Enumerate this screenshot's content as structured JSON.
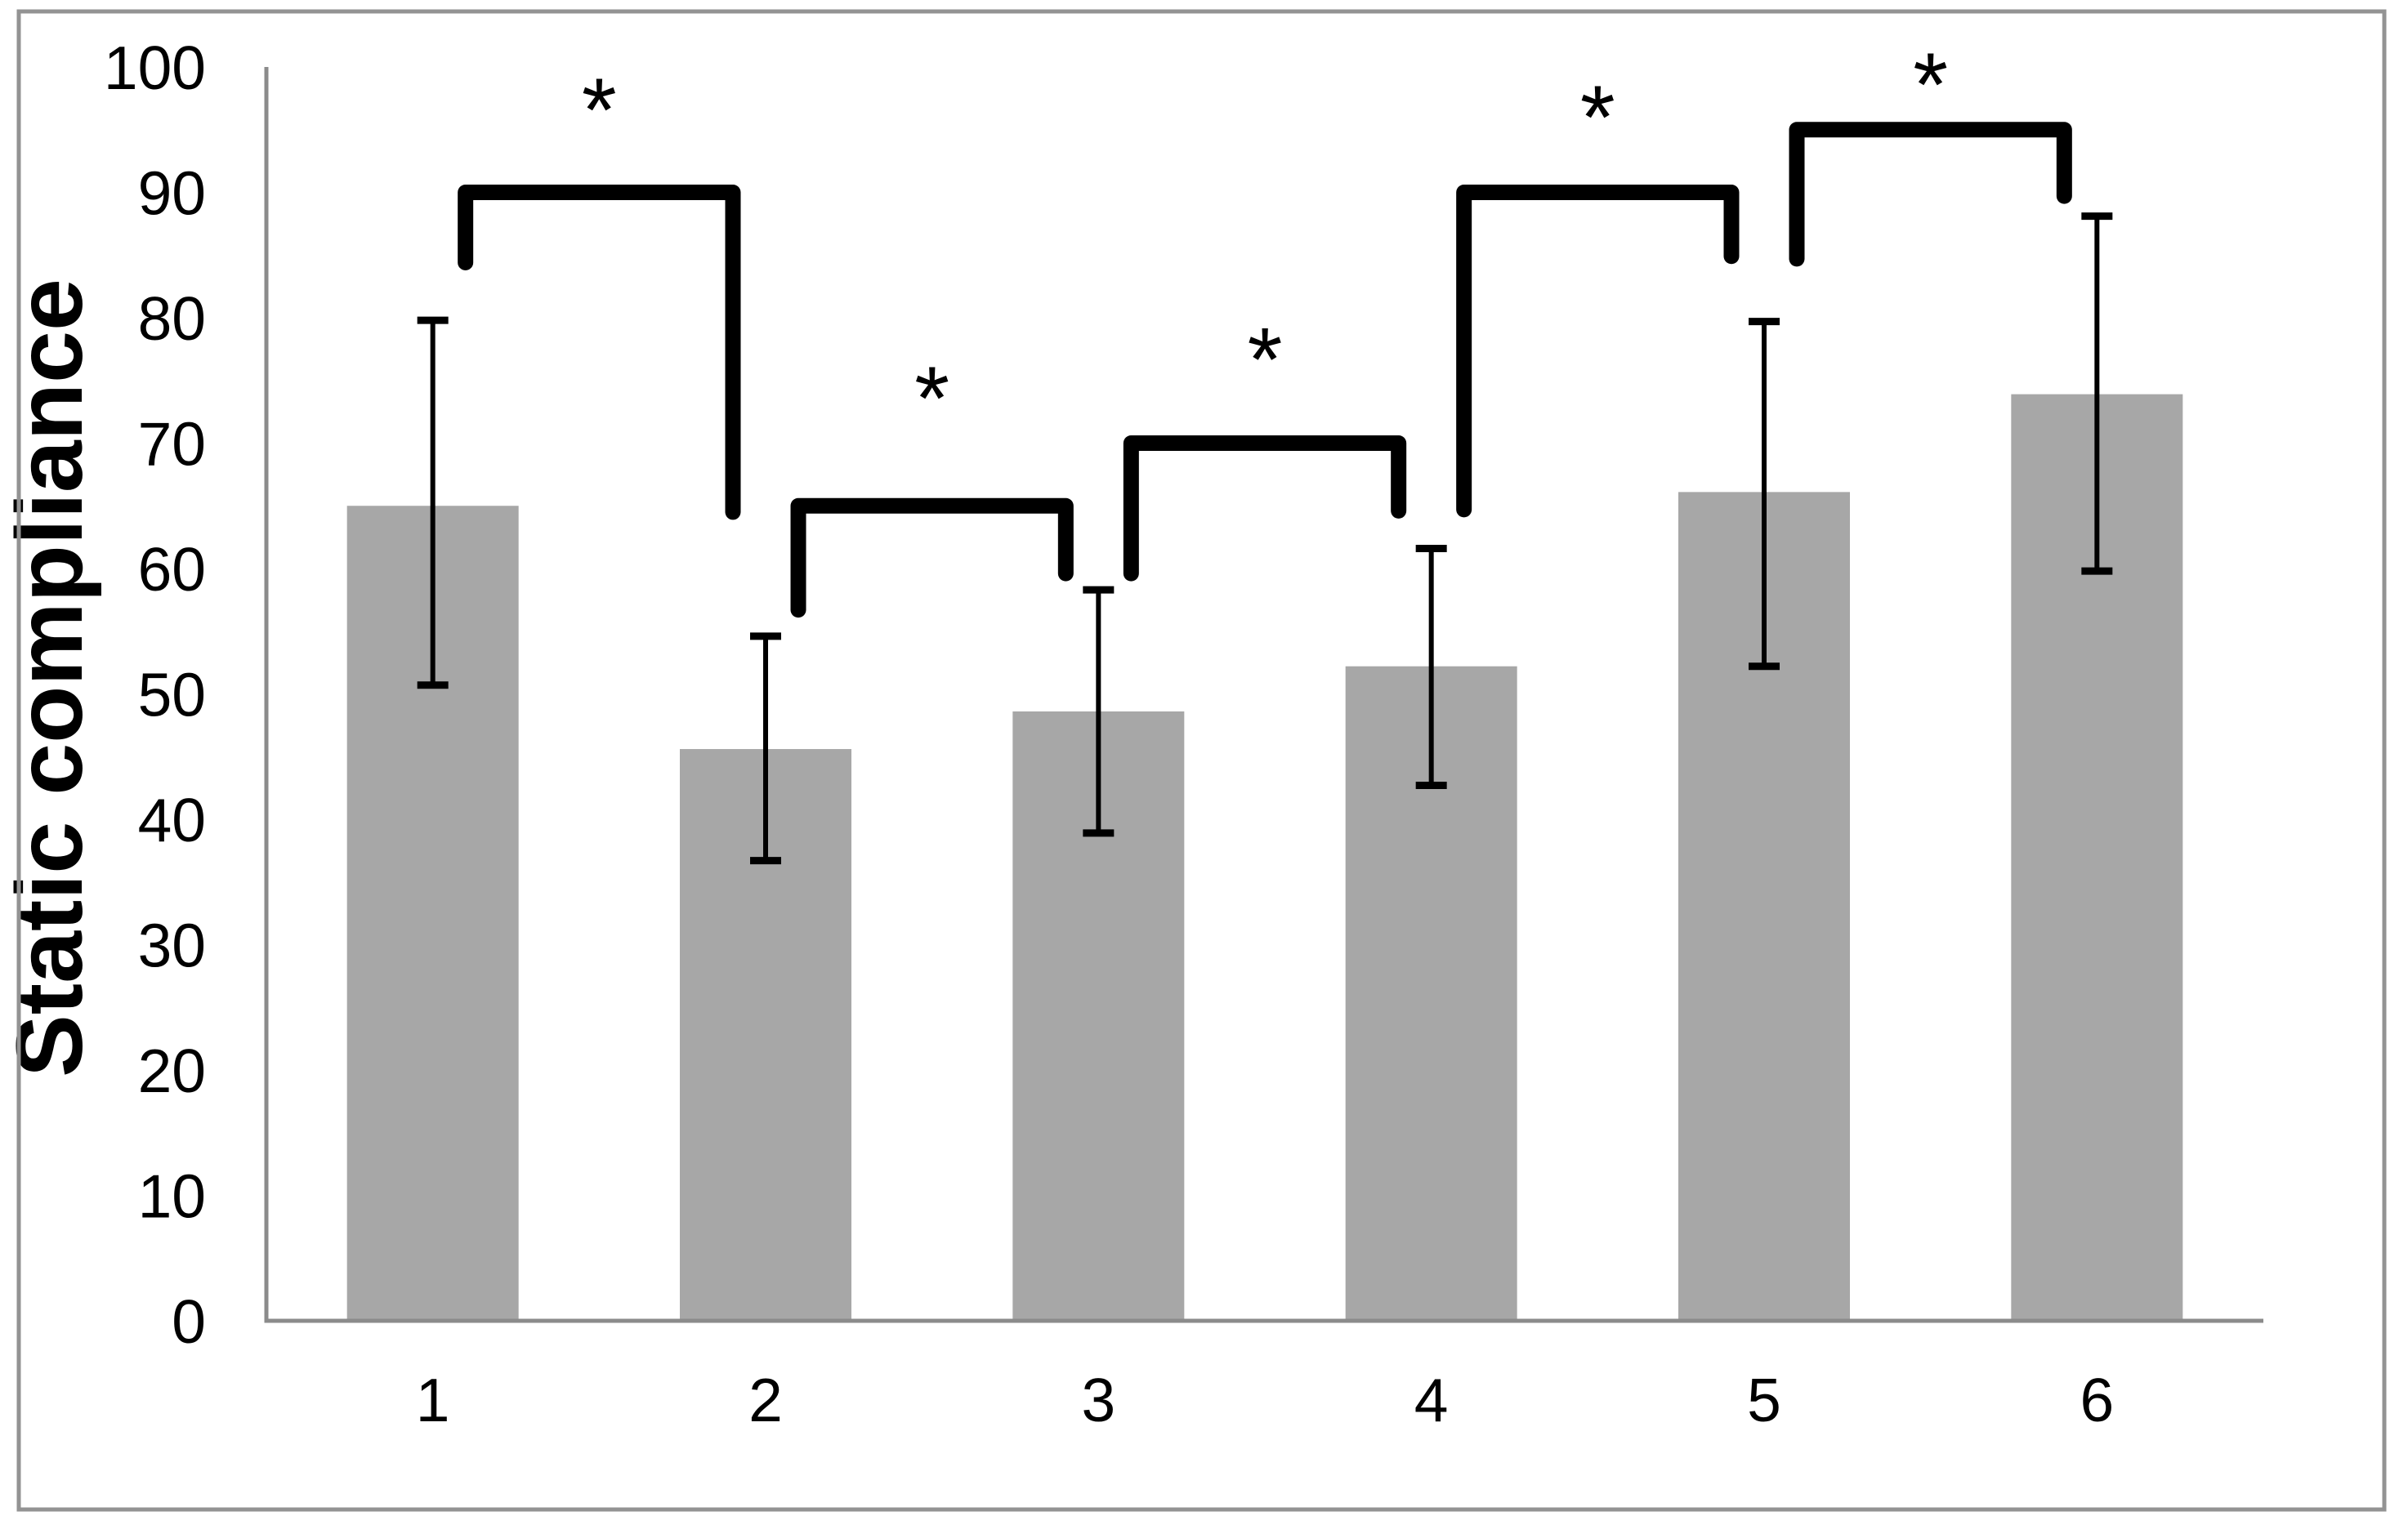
{
  "figure": {
    "description": "Bar chart of static compliance for six conditions with SD error bars and significance brackets"
  },
  "chart_data": {
    "type": "bar",
    "title": "",
    "xlabel": "",
    "ylabel": "Static compliance",
    "categories": [
      "1",
      "2",
      "3",
      "4",
      "5",
      "6"
    ],
    "values": [
      65.0,
      45.6,
      48.6,
      52.2,
      66.1,
      73.9
    ],
    "error_bars": {
      "upper": [
        79.8,
        54.6,
        58.3,
        61.6,
        79.7,
        88.1
      ],
      "lower": [
        50.7,
        36.7,
        38.9,
        42.7,
        52.2,
        59.8
      ]
    },
    "ylim": [
      0,
      100
    ],
    "y_ticks": [
      0,
      10,
      20,
      30,
      40,
      50,
      60,
      70,
      80,
      90,
      100
    ],
    "grid": false,
    "legend": false,
    "bar_color_name": "gray",
    "significance_brackets": [
      {
        "from": "1",
        "to": "2",
        "level": 90,
        "left_drop_to": 84.4,
        "right_drop_to": 64.5,
        "label": "*",
        "label_level": 97.5
      },
      {
        "from": "2",
        "to": "3",
        "level": 65,
        "left_drop_to": 56.7,
        "right_drop_to": 59.6,
        "label": "*",
        "label_level": 74.5
      },
      {
        "from": "3",
        "to": "4",
        "level": 70,
        "left_drop_to": 59.6,
        "right_drop_to": 64.6,
        "label": "*",
        "label_level": 77.6
      },
      {
        "from": "4",
        "to": "5",
        "level": 90,
        "left_drop_to": 64.7,
        "right_drop_to": 84.9,
        "label": "*",
        "label_level": 96.9
      },
      {
        "from": "5",
        "to": "6",
        "level": 95,
        "left_drop_to": 84.7,
        "right_drop_to": 89.7,
        "label": "*",
        "label_level": 99.5
      }
    ],
    "colors": {
      "bar": "#a7a7a7",
      "axis": "#8b8b8b",
      "border": "#939393",
      "ink": "#000000"
    }
  }
}
